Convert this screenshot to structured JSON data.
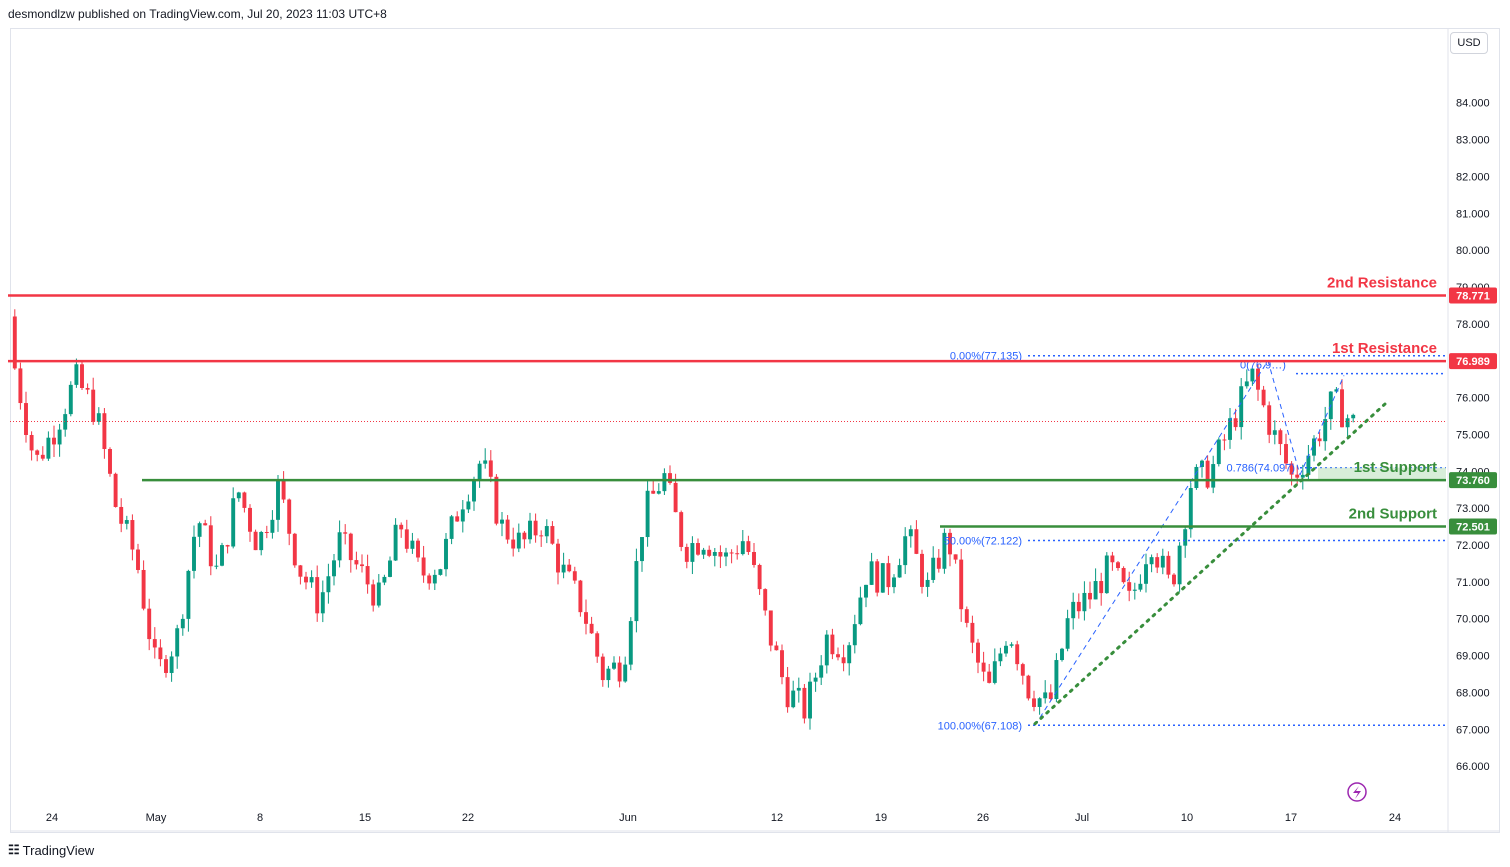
{
  "header": {
    "text": "desmondlzw published on TradingView.com, Jul 20, 2023 11:03 UTC+8"
  },
  "footer": {
    "brand": "TradingView"
  },
  "colors": {
    "resistance": "#f23645",
    "support": "#388e3c",
    "fib": "#2962ff",
    "up": "#089981",
    "down": "#f23645",
    "trend": "#388e3c"
  },
  "chart_data": {
    "type": "candlestick",
    "currency": "USD",
    "y_range": [
      65.2,
      85.0
    ],
    "y_ticks": [
      "84.000",
      "83.000",
      "82.000",
      "81.000",
      "80.000",
      "79.000",
      "78.000",
      "77.000",
      "76.000",
      "75.000",
      "74.000",
      "73.000",
      "72.000",
      "71.000",
      "70.000",
      "69.000",
      "68.000",
      "67.000",
      "66.000"
    ],
    "x_ticks": [
      "24",
      "May",
      "8",
      "15",
      "22",
      "Jun",
      "12",
      "19",
      "26",
      "Jul",
      "10",
      "17",
      "24"
    ],
    "levels": [
      {
        "label": "2nd Resistance",
        "value": "78.771",
        "y": 78.771,
        "kind": "resistance"
      },
      {
        "label": "1st Resistance",
        "value": "76.989",
        "y": 76.989,
        "kind": "resistance"
      },
      {
        "label": "1st Support",
        "value": "73.760",
        "y": 73.76,
        "kind": "support"
      },
      {
        "label": "2nd Support",
        "value": "72.501",
        "y": 72.501,
        "kind": "support"
      }
    ],
    "fib_labels": [
      {
        "text": "0.00%(77.135)",
        "y": 77.135
      },
      {
        "text": "50.00%(72.122)",
        "y": 72.122
      },
      {
        "text": "100.00%(67.108)",
        "y": 67.108
      },
      {
        "text": "0.786(74.097)",
        "y": 74.097
      },
      {
        "text": "0(76.9…)",
        "y": 76.9
      }
    ],
    "last_price": 75.35,
    "close_path": [
      76.8,
      74.2,
      75.2,
      76.5,
      75.6,
      73.0,
      71.6,
      68.5,
      69.5,
      72.8,
      71.2,
      73.5,
      72.0,
      73.6,
      71.4,
      70.4,
      72.1,
      71.3,
      70.5,
      72.6,
      71.2,
      71.5,
      73.2,
      74.3,
      72.5,
      72.0,
      72.6,
      71.3,
      70.3,
      68.5,
      68.8,
      72.8,
      73.9,
      71.9,
      72.2,
      71.6,
      72.2,
      70.0,
      68.1,
      67.5,
      69.5,
      69.2,
      71.3,
      71.0,
      72.3,
      70.8,
      72.3,
      69.5,
      68.0,
      69.8,
      68.1,
      67.6,
      70.1,
      70.6,
      71.4,
      70.4,
      72.2,
      70.8,
      73.7,
      74.0,
      75.3,
      76.6,
      75.1,
      73.8,
      74.7,
      75.9,
      75.3
    ]
  }
}
